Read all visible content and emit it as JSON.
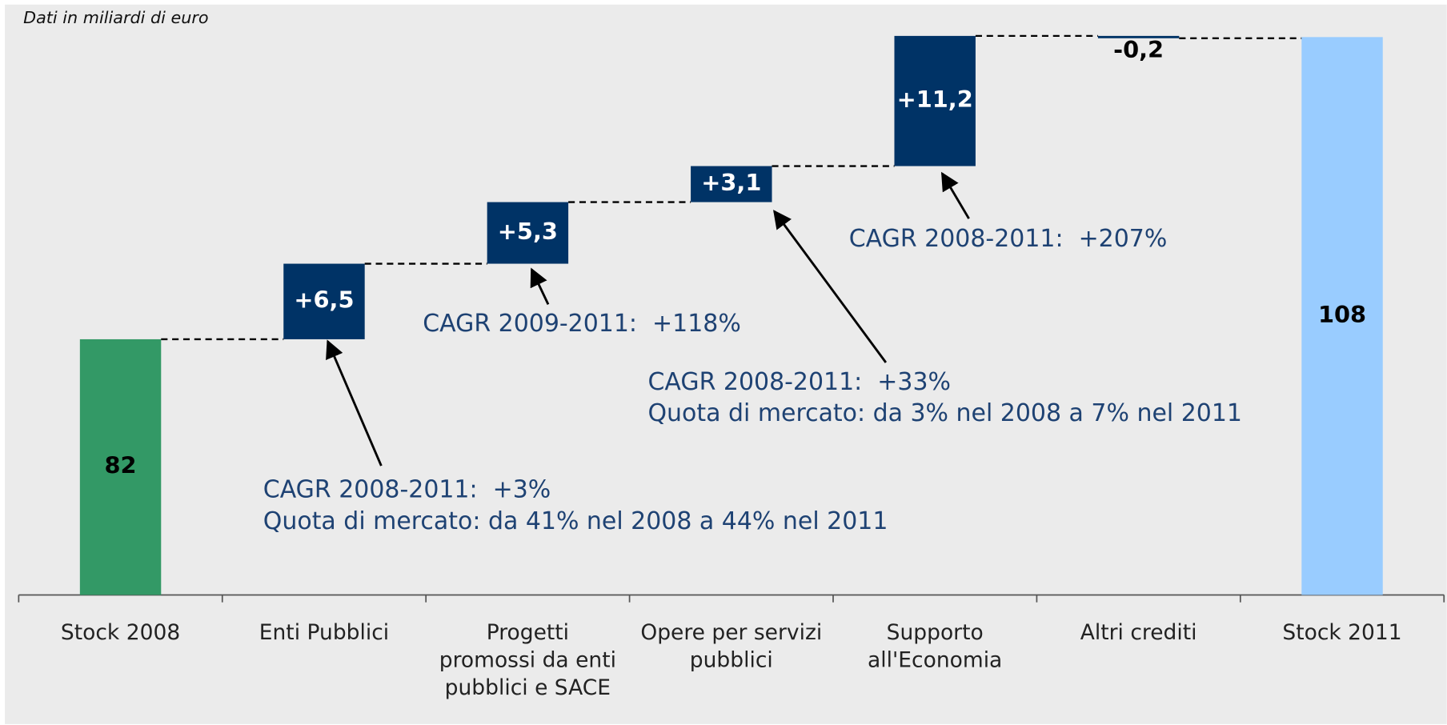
{
  "chart_data": {
    "type": "waterfall",
    "subtitle": "Dati in miliardi di euro",
    "categories": [
      "Stock 2008",
      "Enti Pubblici",
      "Progetti\npromossi da enti\npubblici e SACE",
      "Opere per servizi\npubblici",
      "Supporto\nall'Economia",
      "Altri crediti",
      "Stock 2011"
    ],
    "values": [
      82,
      6.5,
      5.3,
      3.1,
      11.2,
      -0.2,
      108
    ],
    "value_labels": [
      "82",
      "+6,5",
      "+5,3",
      "+3,1",
      "+11,2",
      "-0,2",
      "108"
    ],
    "measure": [
      "total",
      "relative",
      "relative",
      "relative",
      "relative",
      "relative",
      "total"
    ],
    "colors": [
      "#339966",
      "#003366",
      "#003366",
      "#003366",
      "#003366",
      "#003366",
      "#99ccff"
    ],
    "ylim": [
      60,
      110
    ],
    "annotations": [
      {
        "lines": [
          "CAGR 2008-2011:  +3%",
          "Quota di mercato: da 41% nel 2008 a 44% nel 2011"
        ]
      },
      {
        "lines": [
          "CAGR 2009-2011:  +118%"
        ]
      },
      {
        "lines": [
          "CAGR 2008-2011:  +33%",
          "Quota di mercato: da 3% nel 2008 a 7% nel 2011"
        ]
      },
      {
        "lines": [
          "CAGR 2008-2011:  +207%"
        ]
      }
    ]
  }
}
